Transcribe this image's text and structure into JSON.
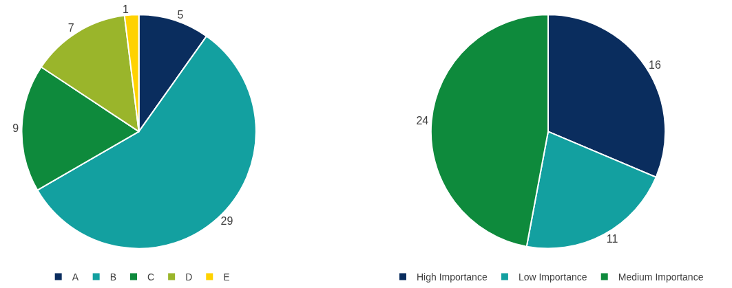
{
  "chart_data": [
    {
      "type": "pie",
      "categories": [
        "A",
        "B",
        "C",
        "D",
        "E"
      ],
      "values": [
        5,
        29,
        9,
        7,
        1
      ],
      "colors": [
        "#0a2d5e",
        "#13a0a0",
        "#0e8a3c",
        "#9ab52b",
        "#ffd200"
      ],
      "data_labels": true,
      "legend": "bottom"
    },
    {
      "type": "pie",
      "categories": [
        "High Importance",
        "Low Importance",
        "Medium Importance"
      ],
      "values": [
        16,
        11,
        24
      ],
      "colors": [
        "#0a2d5e",
        "#13a0a0",
        "#0e8a3c"
      ],
      "data_labels": true,
      "legend": "bottom"
    }
  ]
}
